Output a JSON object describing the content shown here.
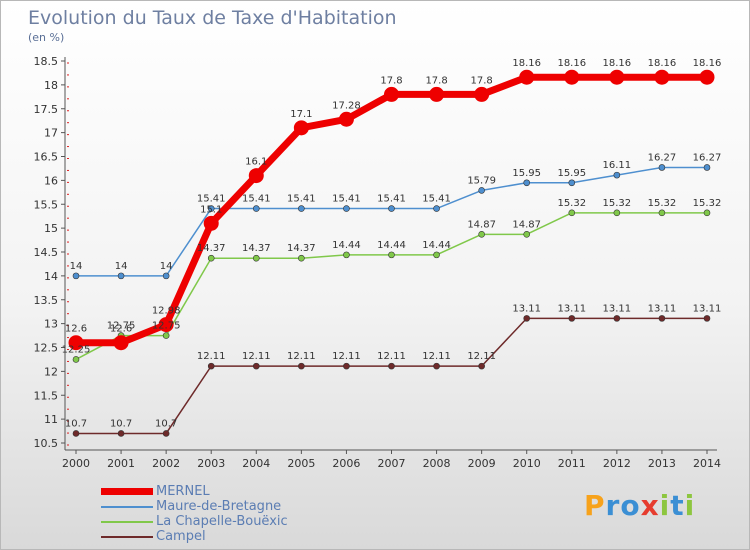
{
  "title": "Evolution du Taux de Taxe d'Habitation",
  "subtitle": "(en %)",
  "logo": {
    "text": "Proxiti",
    "colors": [
      "#f7a21b",
      "#3b8fd4",
      "#3b8fd4",
      "#e63c2e",
      "#8dc63f",
      "#3b8fd4",
      "#8dc63f"
    ]
  },
  "chart_data": {
    "type": "line",
    "x": [
      "2000",
      "2001",
      "2002",
      "2003",
      "2004",
      "2005",
      "2006",
      "2007",
      "2008",
      "2009",
      "2010",
      "2011",
      "2012",
      "2013",
      "2014"
    ],
    "ylim": [
      10.5,
      18.5
    ],
    "yticks": [
      "10.5",
      "11",
      "11.5",
      "12",
      "12.5",
      "13",
      "13.5",
      "14",
      "14.5",
      "15",
      "15.5",
      "16",
      "16.5",
      "17",
      "17.5",
      "18",
      "18.5"
    ],
    "grid": false,
    "legend_position": "bottom-left",
    "series": [
      {
        "name": "MERNEL",
        "color": "#ee0000",
        "values": [
          12.6,
          12.6,
          12.98,
          15.1,
          16.1,
          17.1,
          17.28,
          17.8,
          17.8,
          17.8,
          18.16,
          18.16,
          18.16,
          18.16,
          18.16
        ],
        "labels": [
          "12.6",
          "12.6",
          "12.98",
          "15.1",
          "16.1",
          "17.1",
          "17.28",
          "17.8",
          "17.8",
          "17.8",
          "18.16",
          "18.16",
          "18.16",
          "18.16",
          "18.16"
        ]
      },
      {
        "name": "Maure-de-Bretagne",
        "color": "#4e8fcf",
        "values": [
          14,
          14,
          14,
          15.41,
          15.41,
          15.41,
          15.41,
          15.41,
          15.41,
          15.79,
          15.95,
          15.95,
          16.11,
          16.27,
          16.27
        ],
        "labels": [
          "14",
          "14",
          "14",
          "15.41",
          "15.41",
          "15.41",
          "15.41",
          "15.41",
          "15.41",
          "15.79",
          "15.95",
          "15.95",
          "16.11",
          "16.27",
          "16.27"
        ]
      },
      {
        "name": "La Chapelle-Bouëxic",
        "color": "#80c84a",
        "values": [
          12.25,
          12.75,
          12.75,
          14.37,
          14.37,
          14.37,
          14.44,
          14.44,
          14.44,
          14.87,
          14.87,
          15.32,
          15.32,
          15.32,
          15.32
        ],
        "labels": [
          "12.25",
          "12.75",
          "12.75",
          "14.37",
          "14.37",
          "14.37",
          "14.44",
          "14.44",
          "14.44",
          "14.87",
          "14.87",
          "15.32",
          "15.32",
          "15.32",
          "15.32"
        ]
      },
      {
        "name": "Campel",
        "color": "#6e2a2a",
        "values": [
          10.7,
          10.7,
          10.7,
          12.11,
          12.11,
          12.11,
          12.11,
          12.11,
          12.11,
          12.11,
          13.11,
          13.11,
          13.11,
          13.11,
          13.11
        ],
        "labels": [
          "10.7",
          "10.7",
          "10.7",
          "12.11",
          "12.11",
          "12.11",
          "12.11",
          "12.11",
          "12.11",
          "12.11",
          "13.11",
          "13.11",
          "13.11",
          "13.11",
          "13.11"
        ]
      }
    ]
  }
}
